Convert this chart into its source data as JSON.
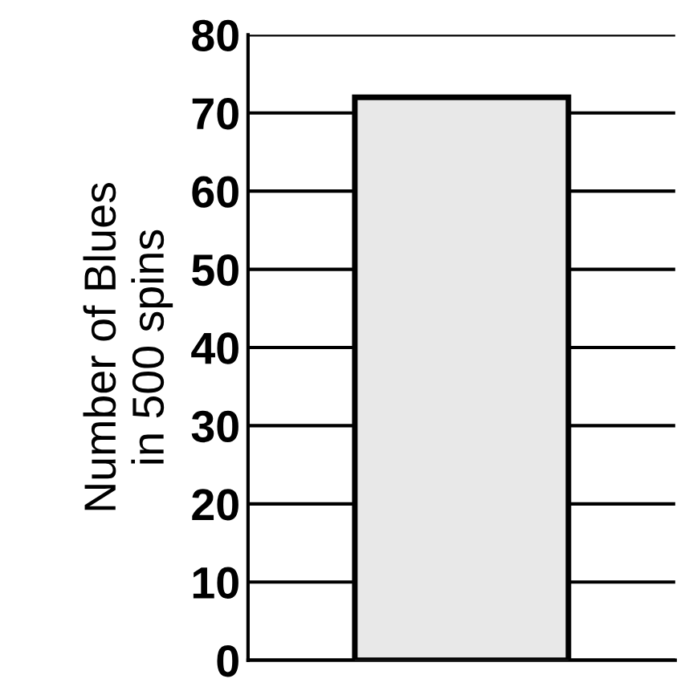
{
  "chart_data": {
    "type": "bar",
    "ylabel": "Number of Blues\nin 500 spins",
    "categories": [
      null
    ],
    "values": [
      72
    ],
    "color": "#e8e8e8",
    "ylim": [
      0,
      80
    ],
    "yticks": [
      0,
      10,
      20,
      30,
      40,
      50,
      60,
      70,
      80
    ],
    "grid": "y"
  }
}
